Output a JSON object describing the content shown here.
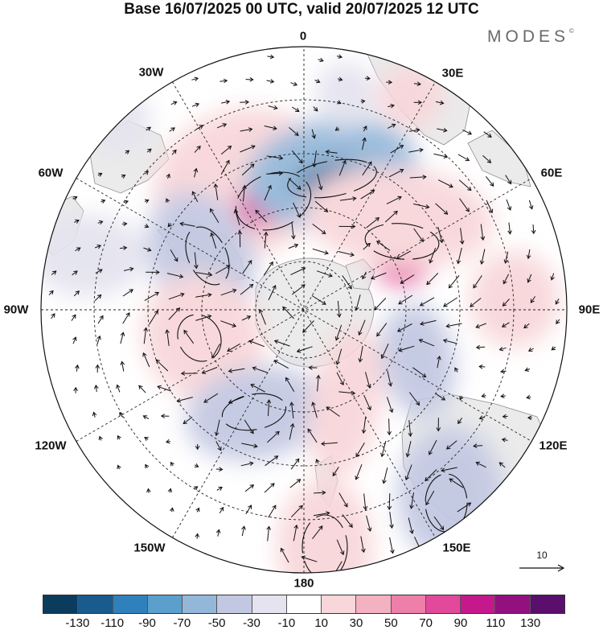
{
  "title": "Base 16/07/2025 00 UTC, valid 20/07/2025 12 UTC",
  "brand": "MODES",
  "brand_mark": "©",
  "lon_labels": {
    "n0": "0",
    "n30e": "30E",
    "n60e": "60E",
    "n90e": "90E",
    "n120e": "120E",
    "n150e": "150E",
    "n180": "180",
    "n150w": "150W",
    "n120w": "120W",
    "n90w": "90W",
    "n60w": "60W",
    "n30w": "30W"
  },
  "reference_vector": "10",
  "colorbar": {
    "colors": [
      "#0b3c5e",
      "#195b8c",
      "#2f80bb",
      "#5b9fcd",
      "#93b7d9",
      "#c2c8e2",
      "#e4e3ef",
      "#ffffff",
      "#f8d6d9",
      "#f3b1c1",
      "#ee7fa9",
      "#e3499a",
      "#c4188c",
      "#93107f",
      "#5a0f6c"
    ],
    "labels": [
      "-130",
      "-110",
      "-90",
      "-70",
      "-50",
      "-30",
      "-10",
      "10",
      "30",
      "50",
      "70",
      "90",
      "110",
      "130"
    ]
  },
  "colors": {
    "land": "#ebebeb",
    "coast": "#8e8e8e",
    "grid": "#222222"
  }
}
